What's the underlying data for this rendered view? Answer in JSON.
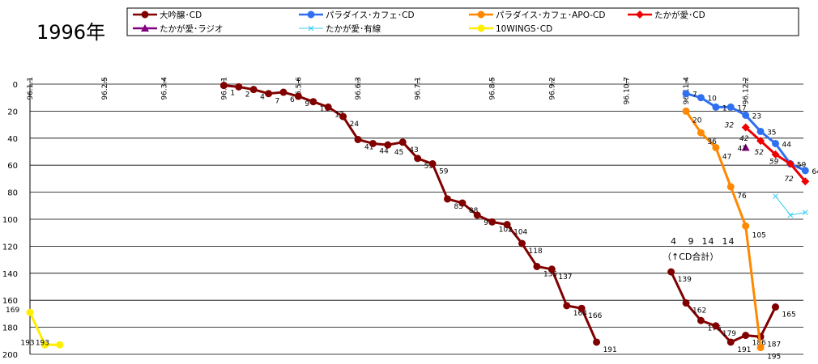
{
  "page_title": "1996年",
  "annotation": {
    "line1": "4   9  14  14",
    "line2": "（↑CD合計）"
  },
  "chart_data": {
    "type": "line",
    "title": "1996年",
    "x_labels": [
      "96.1.1",
      "96.2.5",
      "96.3.4",
      "96.4.1",
      "96.5.6",
      "96.6.3",
      "96.7.1",
      "96.8.5",
      "96.9.2",
      "96.10.7",
      "96.11.4",
      "96.12.2"
    ],
    "y_reversed": true,
    "ylim": [
      0,
      200
    ],
    "y_ticks": [
      0,
      20,
      40,
      60,
      80,
      100,
      120,
      140,
      160,
      180,
      200
    ],
    "grid": true,
    "legend_position": "top",
    "series": [
      {
        "name": "大吟醸･CD",
        "color": "#800000",
        "marker": "circle",
        "points": [
          {
            "x": "96.4.1",
            "y": 1,
            "label": "1"
          },
          {
            "x": "96.4.8",
            "y": 2,
            "label": "2"
          },
          {
            "x": "96.4.15",
            "y": 4,
            "label": "4"
          },
          {
            "x": "96.4.22",
            "y": 7,
            "label": "7"
          },
          {
            "x": "96.4.29",
            "y": 6,
            "label": "6"
          },
          {
            "x": "96.5.6",
            "y": 9,
            "label": "9"
          },
          {
            "x": "96.5.13",
            "y": 13,
            "label": "13"
          },
          {
            "x": "96.5.20",
            "y": 17,
            "label": "17"
          },
          {
            "x": "96.5.27",
            "y": 24,
            "label": "24"
          },
          {
            "x": "96.6.3",
            "y": 41,
            "label": "41"
          },
          {
            "x": "96.6.10",
            "y": 44,
            "label": "44"
          },
          {
            "x": "96.6.17",
            "y": 45,
            "label": "45"
          },
          {
            "x": "96.6.24",
            "y": 43,
            "label": "43"
          },
          {
            "x": "96.7.1",
            "y": 55,
            "label": "55"
          },
          {
            "x": "96.7.8",
            "y": 59,
            "label": "59"
          },
          {
            "x": "96.7.15",
            "y": 85,
            "label": "85"
          },
          {
            "x": "96.7.22",
            "y": 88,
            "label": "88"
          },
          {
            "x": "96.7.29",
            "y": 97,
            "label": "97"
          },
          {
            "x": "96.8.5",
            "y": 102,
            "label": "102"
          },
          {
            "x": "96.8.12",
            "y": 104,
            "label": "104"
          },
          {
            "x": "96.8.19",
            "y": 118,
            "label": "118"
          },
          {
            "x": "96.8.26",
            "y": 135,
            "label": "135"
          },
          {
            "x": "96.9.2",
            "y": 137,
            "label": "137"
          },
          {
            "x": "96.9.9",
            "y": 164,
            "label": "164"
          },
          {
            "x": "96.9.16",
            "y": 166,
            "label": "166"
          },
          {
            "x": "96.9.23",
            "y": 191,
            "label": "191"
          },
          {
            "x": "96.10.28",
            "y": 139,
            "label": "139",
            "break_before": true
          },
          {
            "x": "96.11.4",
            "y": 162,
            "label": "162"
          },
          {
            "x": "96.11.11",
            "y": 175,
            "label": "175"
          },
          {
            "x": "96.11.18",
            "y": 179,
            "label": "179"
          },
          {
            "x": "96.11.25",
            "y": 191,
            "label": "191"
          },
          {
            "x": "96.12.2",
            "y": 186,
            "label": "186"
          },
          {
            "x": "96.12.9",
            "y": 187,
            "label": "187"
          },
          {
            "x": "96.12.16",
            "y": 165,
            "label": "165"
          }
        ]
      },
      {
        "name": "パラダイス･カフェ･CD",
        "color": "#3070f0",
        "marker": "circle",
        "points": [
          {
            "x": "96.11.4",
            "y": 7,
            "label": "7"
          },
          {
            "x": "96.11.11",
            "y": 10,
            "label": "10"
          },
          {
            "x": "96.11.18",
            "y": 17,
            "label": "17"
          },
          {
            "x": "96.11.25",
            "y": 17,
            "label": "17"
          },
          {
            "x": "96.12.2",
            "y": 23,
            "label": "23"
          },
          {
            "x": "96.12.9",
            "y": 35,
            "label": "35"
          },
          {
            "x": "96.12.16",
            "y": 44,
            "label": "44"
          },
          {
            "x": "96.12.23",
            "y": 59,
            "label": "59"
          },
          {
            "x": "96.12.30",
            "y": 64,
            "label": "64"
          }
        ]
      },
      {
        "name": "パラダイス･カフェ･APO-CD",
        "color": "#ff8800",
        "marker": "circle",
        "points": [
          {
            "x": "96.11.4",
            "y": 20,
            "label": "20"
          },
          {
            "x": "96.11.11",
            "y": 36,
            "label": "36"
          },
          {
            "x": "96.11.18",
            "y": 47,
            "label": "47"
          },
          {
            "x": "96.11.25",
            "y": 76,
            "label": "76"
          },
          {
            "x": "96.12.2",
            "y": 105,
            "label": "105"
          },
          {
            "x": "96.12.9",
            "y": 195,
            "label": "195"
          }
        ]
      },
      {
        "name": "たかが愛･CD",
        "color": "#ee0000",
        "marker": "diamond",
        "points": [
          {
            "x": "96.12.2",
            "y": 32,
            "label": "32"
          },
          {
            "x": "96.12.9",
            "y": 42,
            "label": "42"
          },
          {
            "x": "96.12.16",
            "y": 52,
            "label": "52"
          },
          {
            "x": "96.12.23",
            "y": 59,
            "label": "59"
          },
          {
            "x": "96.12.30",
            "y": 72,
            "label": "72"
          }
        ]
      },
      {
        "name": "たかが愛･ラジオ",
        "color": "#800080",
        "marker": "triangle",
        "points": [
          {
            "x": "96.12.2",
            "y": 47,
            "label": "47"
          }
        ]
      },
      {
        "name": "たかが愛･有線",
        "color": "#33ccee",
        "marker": "x",
        "points": [
          {
            "x": "96.12.16",
            "y": 83,
            "label": ""
          },
          {
            "x": "96.12.23",
            "y": 97,
            "label": ""
          },
          {
            "x": "96.12.30",
            "y": 95,
            "label": ""
          }
        ]
      },
      {
        "name": "10WINGS･CD",
        "color": "#ffee00",
        "marker": "circle",
        "points": [
          {
            "x": "96.1.1",
            "y": 169,
            "label": "169"
          },
          {
            "x": "96.1.8",
            "y": 193,
            "label": "193"
          },
          {
            "x": "96.1.15",
            "y": 193,
            "label": "193"
          }
        ]
      }
    ]
  }
}
